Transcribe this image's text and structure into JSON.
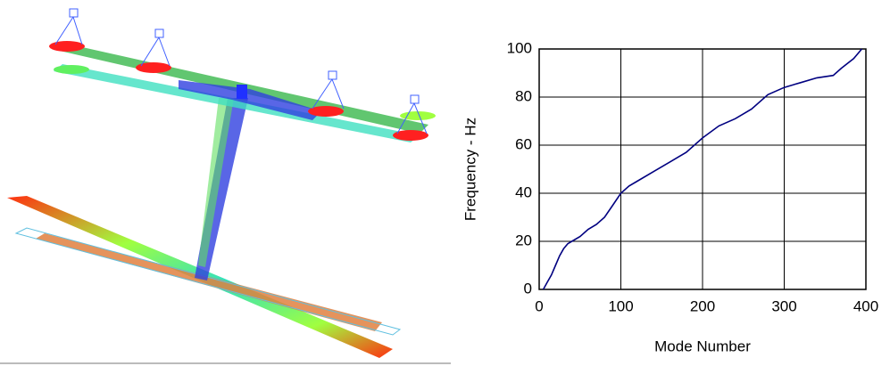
{
  "chart_data": {
    "type": "line",
    "x_label": "Mode Number",
    "y_label": "Frequency - Hz",
    "xlim": [
      0,
      400
    ],
    "xticks": [
      0,
      100,
      200,
      300,
      400
    ],
    "ylim": [
      0,
      100
    ],
    "yticks": [
      0,
      20,
      40,
      60,
      80,
      100
    ],
    "grid": true,
    "series": [
      {
        "color": "#000080",
        "x": [
          5,
          10,
          15,
          20,
          25,
          30,
          35,
          40,
          50,
          60,
          70,
          80,
          90,
          100,
          110,
          120,
          140,
          160,
          180,
          200,
          220,
          240,
          260,
          280,
          300,
          320,
          340,
          360,
          370,
          385,
          395
        ],
        "values": [
          0,
          3,
          6,
          10,
          14,
          17,
          19,
          20,
          22,
          25,
          27,
          30,
          35,
          40,
          43,
          45,
          49,
          53,
          57,
          63,
          68,
          71,
          75,
          81,
          84,
          86,
          88,
          89,
          92,
          96,
          100
        ]
      }
    ]
  }
}
